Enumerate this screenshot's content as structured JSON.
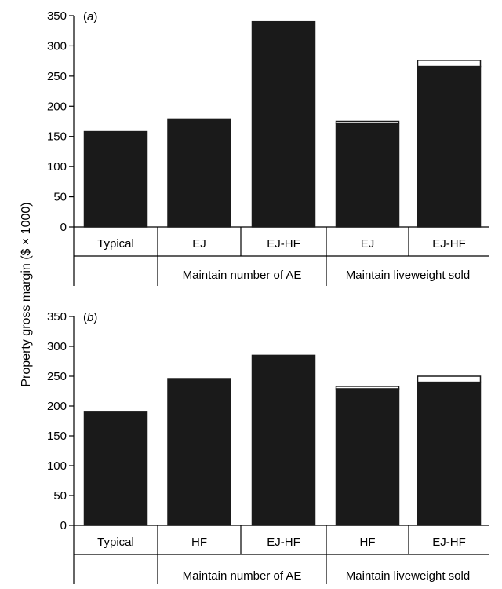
{
  "ylabel": "Property gross margin ($ × 1000)",
  "chart_data": [
    {
      "type": "bar",
      "panel_label": "(a)",
      "panel_letter": "a",
      "categories": [
        "Typical",
        "EJ",
        "EJ-HF",
        "EJ",
        "EJ-HF"
      ],
      "groups": [
        {
          "label": "",
          "categories": [
            0
          ]
        },
        {
          "label": "Maintain number of AE",
          "categories": [
            1,
            2
          ]
        },
        {
          "label": "Maintain liveweight sold",
          "categories": [
            3,
            4
          ]
        }
      ],
      "series": [
        {
          "color": "#1a1a1a",
          "values": [
            158,
            179,
            340,
            172,
            266
          ]
        },
        {
          "color": "#ffffff",
          "values": [
            0,
            0,
            0,
            3,
            10
          ]
        }
      ],
      "ylim": [
        0,
        350
      ],
      "yticks": [
        0,
        50,
        100,
        150,
        200,
        250,
        300,
        350
      ],
      "ylabel": "Property gross margin ($ × 1000)"
    },
    {
      "type": "bar",
      "panel_label": "(b)",
      "panel_letter": "b",
      "categories": [
        "Typical",
        "HF",
        "EJ-HF",
        "HF",
        "EJ-HF"
      ],
      "groups": [
        {
          "label": "",
          "categories": [
            0
          ]
        },
        {
          "label": "Maintain number of AE",
          "categories": [
            1,
            2
          ]
        },
        {
          "label": "Maintain liveweight sold",
          "categories": [
            3,
            4
          ]
        }
      ],
      "series": [
        {
          "color": "#1a1a1a",
          "values": [
            191,
            246,
            285,
            229,
            240
          ]
        },
        {
          "color": "#ffffff",
          "values": [
            0,
            0,
            0,
            4,
            10
          ]
        }
      ],
      "ylim": [
        0,
        350
      ],
      "yticks": [
        0,
        50,
        100,
        150,
        200,
        250,
        300,
        350
      ],
      "ylabel": "Property gross margin ($ × 1000)"
    }
  ]
}
